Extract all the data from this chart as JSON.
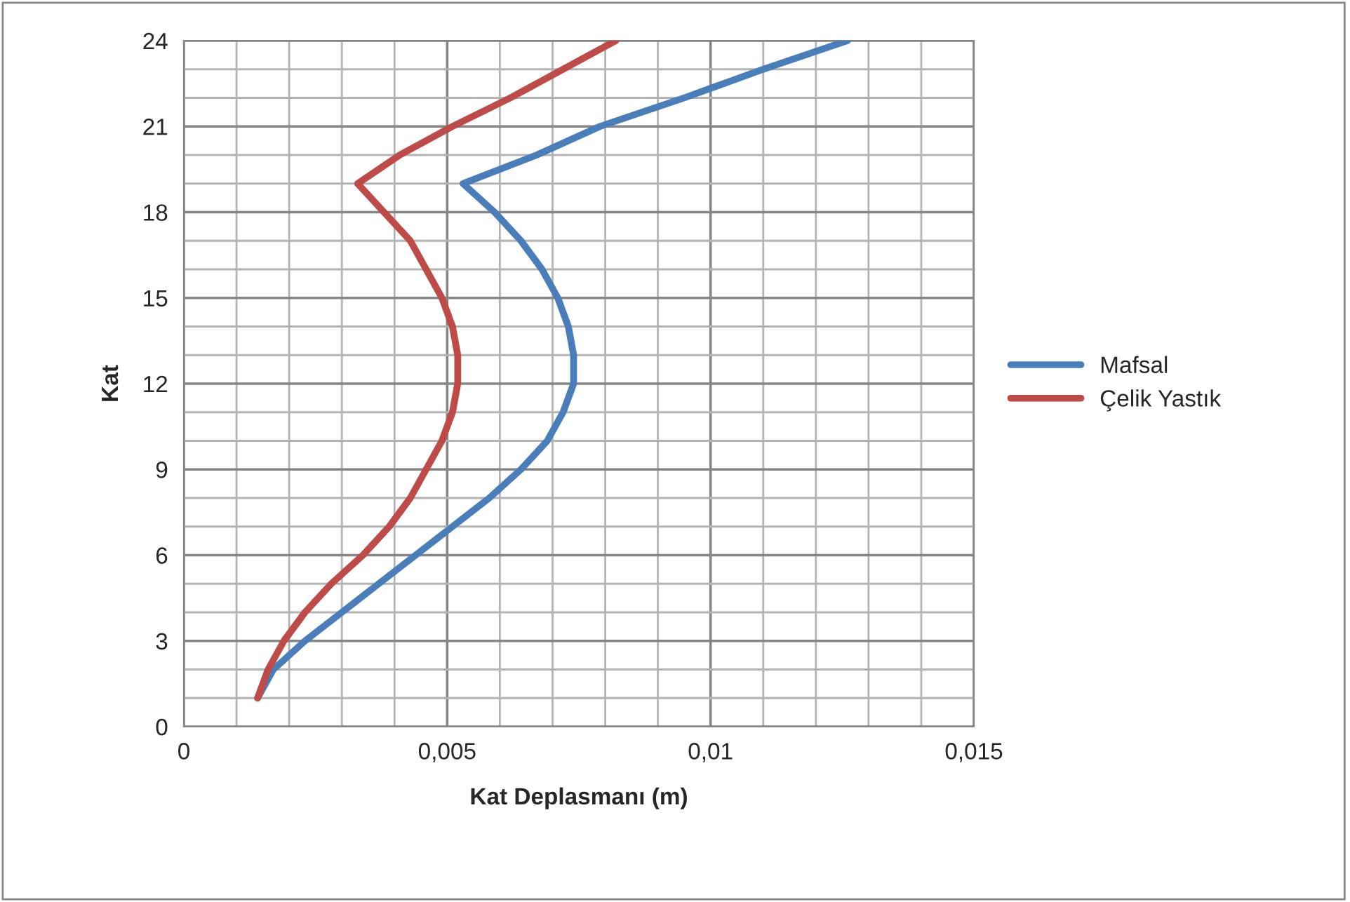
{
  "chart_data": {
    "type": "line",
    "xlabel": "Kat Deplasmanı (m)",
    "ylabel": "Kat",
    "series": [
      {
        "name": "Mafsal",
        "color": "#4a7ebb",
        "x": [
          0.0014,
          0.0017,
          0.0023,
          0.003,
          0.0037,
          0.0044,
          0.0051,
          0.0058,
          0.0064,
          0.0069,
          0.0072,
          0.0074,
          0.0074,
          0.0073,
          0.0071,
          0.0068,
          0.0064,
          0.0059,
          0.0053,
          0.0067,
          0.0079,
          0.0095,
          0.011,
          0.0126
        ],
        "values": [
          1,
          2,
          3,
          4,
          5,
          6,
          7,
          8,
          9,
          10,
          11,
          12,
          13,
          14,
          15,
          16,
          17,
          18,
          19,
          20,
          21,
          22,
          23,
          24
        ]
      },
      {
        "name": "Çelik Yastık",
        "color": "#be4b48",
        "x": [
          0.0014,
          0.0016,
          0.0019,
          0.0023,
          0.0028,
          0.0034,
          0.0039,
          0.0043,
          0.0046,
          0.0049,
          0.0051,
          0.0052,
          0.0052,
          0.0051,
          0.0049,
          0.0046,
          0.0043,
          0.0038,
          0.0033,
          0.0041,
          0.0051,
          0.0062,
          0.0072,
          0.0082
        ],
        "values": [
          1,
          2,
          3,
          4,
          5,
          6,
          7,
          8,
          9,
          10,
          11,
          12,
          13,
          14,
          15,
          16,
          17,
          18,
          19,
          20,
          21,
          22,
          23,
          24
        ]
      }
    ],
    "xlim": [
      0,
      0.015
    ],
    "xticks": [
      {
        "value": 0,
        "label": "0"
      },
      {
        "value": 0.001,
        "label": null
      },
      {
        "value": 0.002,
        "label": null
      },
      {
        "value": 0.003,
        "label": null
      },
      {
        "value": 0.004,
        "label": null
      },
      {
        "value": 0.005,
        "label": "0,005"
      },
      {
        "value": 0.006,
        "label": null
      },
      {
        "value": 0.007,
        "label": null
      },
      {
        "value": 0.008,
        "label": null
      },
      {
        "value": 0.009,
        "label": null
      },
      {
        "value": 0.01,
        "label": "0,01"
      },
      {
        "value": 0.011,
        "label": null
      },
      {
        "value": 0.012,
        "label": null
      },
      {
        "value": 0.013,
        "label": null
      },
      {
        "value": 0.014,
        "label": null
      },
      {
        "value": 0.015,
        "label": "0,015"
      }
    ],
    "ylim": [
      0,
      24
    ],
    "yticks": [
      0,
      {
        "value": 1,
        "label": null
      },
      {
        "value": 2,
        "label": null
      },
      3,
      {
        "value": 4,
        "label": null
      },
      {
        "value": 5,
        "label": null
      },
      6,
      {
        "value": 7,
        "label": null
      },
      {
        "value": 8,
        "label": null
      },
      9,
      {
        "value": 10,
        "label": null
      },
      {
        "value": 11,
        "label": null
      },
      12,
      {
        "value": 13,
        "label": null
      },
      {
        "value": 14,
        "label": null
      },
      15,
      {
        "value": 16,
        "label": null
      },
      {
        "value": 17,
        "label": null
      },
      18,
      {
        "value": 19,
        "label": null
      },
      {
        "value": 20,
        "label": null
      },
      21,
      {
        "value": 22,
        "label": null
      },
      {
        "value": 23,
        "label": null
      },
      24
    ],
    "grid": true,
    "legend": "right",
    "marker": "none",
    "line_style": "solid"
  }
}
